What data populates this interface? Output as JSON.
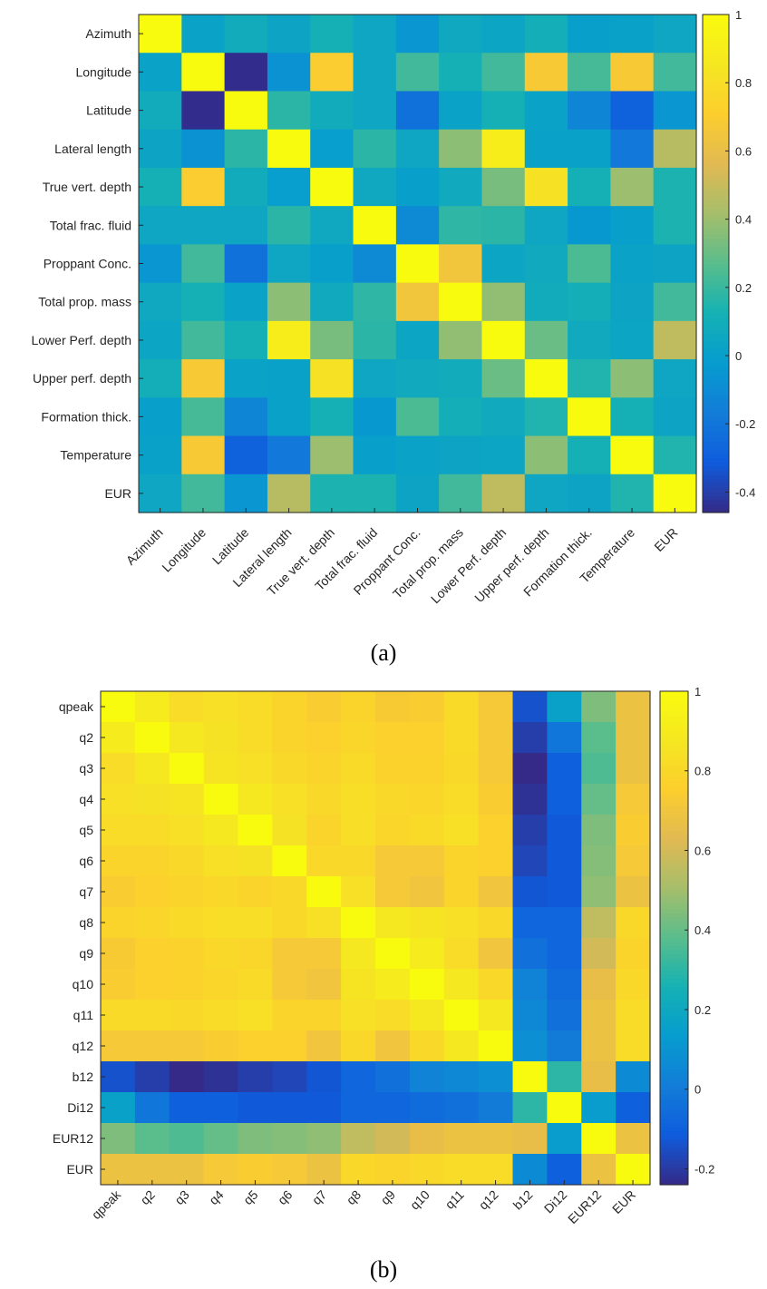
{
  "chart_data": [
    {
      "type": "heatmap",
      "caption": "(a)",
      "labels": [
        "Azimuth",
        "Longitude",
        "Latitude",
        "Lateral length",
        "True vert. depth",
        "Total frac. fluid",
        "Proppant Conc.",
        "Total prop. mass",
        "Lower Perf. depth",
        "Upper perf. depth",
        "Formation thick.",
        "Temperature",
        "EUR"
      ],
      "values": [
        [
          1.0,
          0.02,
          0.08,
          0.03,
          0.12,
          0.05,
          -0.05,
          0.06,
          0.04,
          0.1,
          0.0,
          0.01,
          0.05
        ],
        [
          0.02,
          1.0,
          -0.45,
          -0.07,
          0.7,
          0.05,
          0.22,
          0.12,
          0.22,
          0.68,
          0.23,
          0.68,
          0.22
        ],
        [
          0.08,
          -0.45,
          1.0,
          0.17,
          0.08,
          0.05,
          -0.22,
          0.02,
          0.12,
          0.02,
          -0.13,
          -0.29,
          -0.05
        ],
        [
          0.03,
          -0.07,
          0.17,
          1.0,
          -0.01,
          0.17,
          0.05,
          0.37,
          0.9,
          0.01,
          0.01,
          -0.19,
          0.46
        ],
        [
          0.12,
          0.7,
          0.08,
          -0.01,
          1.0,
          0.06,
          0.0,
          0.07,
          0.33,
          0.82,
          0.12,
          0.4,
          0.14
        ],
        [
          0.05,
          0.05,
          0.05,
          0.17,
          0.06,
          1.0,
          -0.11,
          0.18,
          0.17,
          0.05,
          -0.04,
          0.0,
          0.14
        ],
        [
          -0.05,
          0.22,
          -0.22,
          0.05,
          0.0,
          -0.11,
          1.0,
          0.65,
          0.04,
          0.07,
          0.24,
          0.02,
          0.03
        ],
        [
          0.06,
          0.12,
          0.02,
          0.37,
          0.07,
          0.18,
          0.65,
          1.0,
          0.38,
          0.08,
          0.1,
          0.03,
          0.22
        ],
        [
          0.04,
          0.22,
          0.12,
          0.9,
          0.33,
          0.17,
          0.04,
          0.38,
          1.0,
          0.3,
          0.07,
          0.04,
          0.48
        ],
        [
          0.1,
          0.68,
          0.02,
          0.01,
          0.82,
          0.05,
          0.07,
          0.08,
          0.3,
          1.0,
          0.15,
          0.37,
          0.05
        ],
        [
          0.0,
          0.23,
          -0.13,
          0.01,
          0.12,
          -0.04,
          0.24,
          0.1,
          0.07,
          0.15,
          1.0,
          0.12,
          0.03
        ],
        [
          0.01,
          0.68,
          -0.29,
          -0.19,
          0.4,
          0.0,
          0.02,
          0.03,
          0.04,
          0.37,
          0.12,
          1.0,
          0.15
        ],
        [
          0.05,
          0.22,
          -0.05,
          0.46,
          0.14,
          0.14,
          0.03,
          0.22,
          0.48,
          0.05,
          0.03,
          0.15,
          1.0
        ]
      ],
      "clim": [
        -0.46,
        1.0
      ],
      "colorbar_ticks": [
        1,
        0.8,
        0.6,
        0.4,
        0.2,
        0,
        -0.2,
        -0.4
      ],
      "colormap": "parula"
    },
    {
      "type": "heatmap",
      "caption": "(b)",
      "labels": [
        "qpeak",
        "q2",
        "q3",
        "q4",
        "q5",
        "q6",
        "q7",
        "q8",
        "q9",
        "q10",
        "q11",
        "q12",
        "b12",
        "Di12",
        "EUR12",
        "EUR"
      ],
      "values": [
        [
          1.0,
          0.9,
          0.82,
          0.84,
          0.82,
          0.78,
          0.74,
          0.78,
          0.73,
          0.74,
          0.81,
          0.72,
          -0.14,
          0.16,
          0.44,
          0.68
        ],
        [
          0.9,
          1.0,
          0.88,
          0.85,
          0.82,
          0.78,
          0.76,
          0.79,
          0.76,
          0.76,
          0.81,
          0.72,
          -0.19,
          -0.02,
          0.38,
          0.68
        ],
        [
          0.82,
          0.88,
          1.0,
          0.86,
          0.84,
          0.8,
          0.78,
          0.81,
          0.77,
          0.77,
          0.8,
          0.72,
          -0.24,
          -0.1,
          0.36,
          0.68
        ],
        [
          0.84,
          0.85,
          0.86,
          1.0,
          0.88,
          0.84,
          0.8,
          0.83,
          0.8,
          0.79,
          0.82,
          0.74,
          -0.22,
          -0.1,
          0.4,
          0.72
        ],
        [
          0.82,
          0.82,
          0.84,
          0.88,
          1.0,
          0.85,
          0.78,
          0.83,
          0.79,
          0.81,
          0.84,
          0.76,
          -0.19,
          -0.12,
          0.44,
          0.74
        ],
        [
          0.78,
          0.78,
          0.8,
          0.84,
          0.85,
          1.0,
          0.8,
          0.8,
          0.72,
          0.72,
          0.78,
          0.76,
          -0.17,
          -0.12,
          0.45,
          0.72
        ],
        [
          0.74,
          0.76,
          0.78,
          0.8,
          0.78,
          0.8,
          1.0,
          0.84,
          0.72,
          0.7,
          0.78,
          0.7,
          -0.13,
          -0.12,
          0.47,
          0.68
        ],
        [
          0.78,
          0.79,
          0.81,
          0.83,
          0.83,
          0.8,
          0.84,
          1.0,
          0.88,
          0.86,
          0.84,
          0.8,
          -0.08,
          -0.08,
          0.56,
          0.8
        ],
        [
          0.73,
          0.76,
          0.77,
          0.8,
          0.79,
          0.72,
          0.72,
          0.88,
          1.0,
          0.9,
          0.82,
          0.7,
          -0.04,
          -0.08,
          0.6,
          0.78
        ],
        [
          0.74,
          0.76,
          0.77,
          0.79,
          0.81,
          0.72,
          0.7,
          0.86,
          0.9,
          1.0,
          0.88,
          0.8,
          0.03,
          -0.06,
          0.66,
          0.8
        ],
        [
          0.81,
          0.81,
          0.8,
          0.82,
          0.84,
          0.78,
          0.78,
          0.84,
          0.82,
          0.88,
          1.0,
          0.88,
          0.05,
          -0.04,
          0.68,
          0.82
        ],
        [
          0.72,
          0.72,
          0.72,
          0.74,
          0.76,
          0.76,
          0.7,
          0.8,
          0.7,
          0.8,
          0.88,
          1.0,
          0.08,
          0.0,
          0.68,
          0.82
        ],
        [
          -0.14,
          -0.19,
          -0.24,
          -0.22,
          -0.19,
          -0.17,
          -0.13,
          -0.08,
          -0.04,
          0.03,
          0.05,
          0.08,
          1.0,
          0.3,
          0.66,
          0.06
        ],
        [
          0.16,
          -0.02,
          -0.1,
          -0.1,
          -0.12,
          -0.12,
          -0.12,
          -0.08,
          -0.08,
          -0.06,
          -0.04,
          0.0,
          0.3,
          1.0,
          0.14,
          -0.1
        ],
        [
          0.44,
          0.38,
          0.36,
          0.4,
          0.44,
          0.45,
          0.47,
          0.56,
          0.6,
          0.66,
          0.68,
          0.68,
          0.66,
          0.14,
          1.0,
          0.68
        ],
        [
          0.68,
          0.68,
          0.68,
          0.72,
          0.74,
          0.72,
          0.68,
          0.8,
          0.78,
          0.8,
          0.82,
          0.82,
          0.06,
          -0.1,
          0.68,
          1.0
        ]
      ],
      "clim": [
        -0.24,
        1.0
      ],
      "colorbar_ticks": [
        1,
        0.8,
        0.6,
        0.4,
        0.2,
        0,
        -0.2
      ],
      "colormap": "parula"
    }
  ]
}
